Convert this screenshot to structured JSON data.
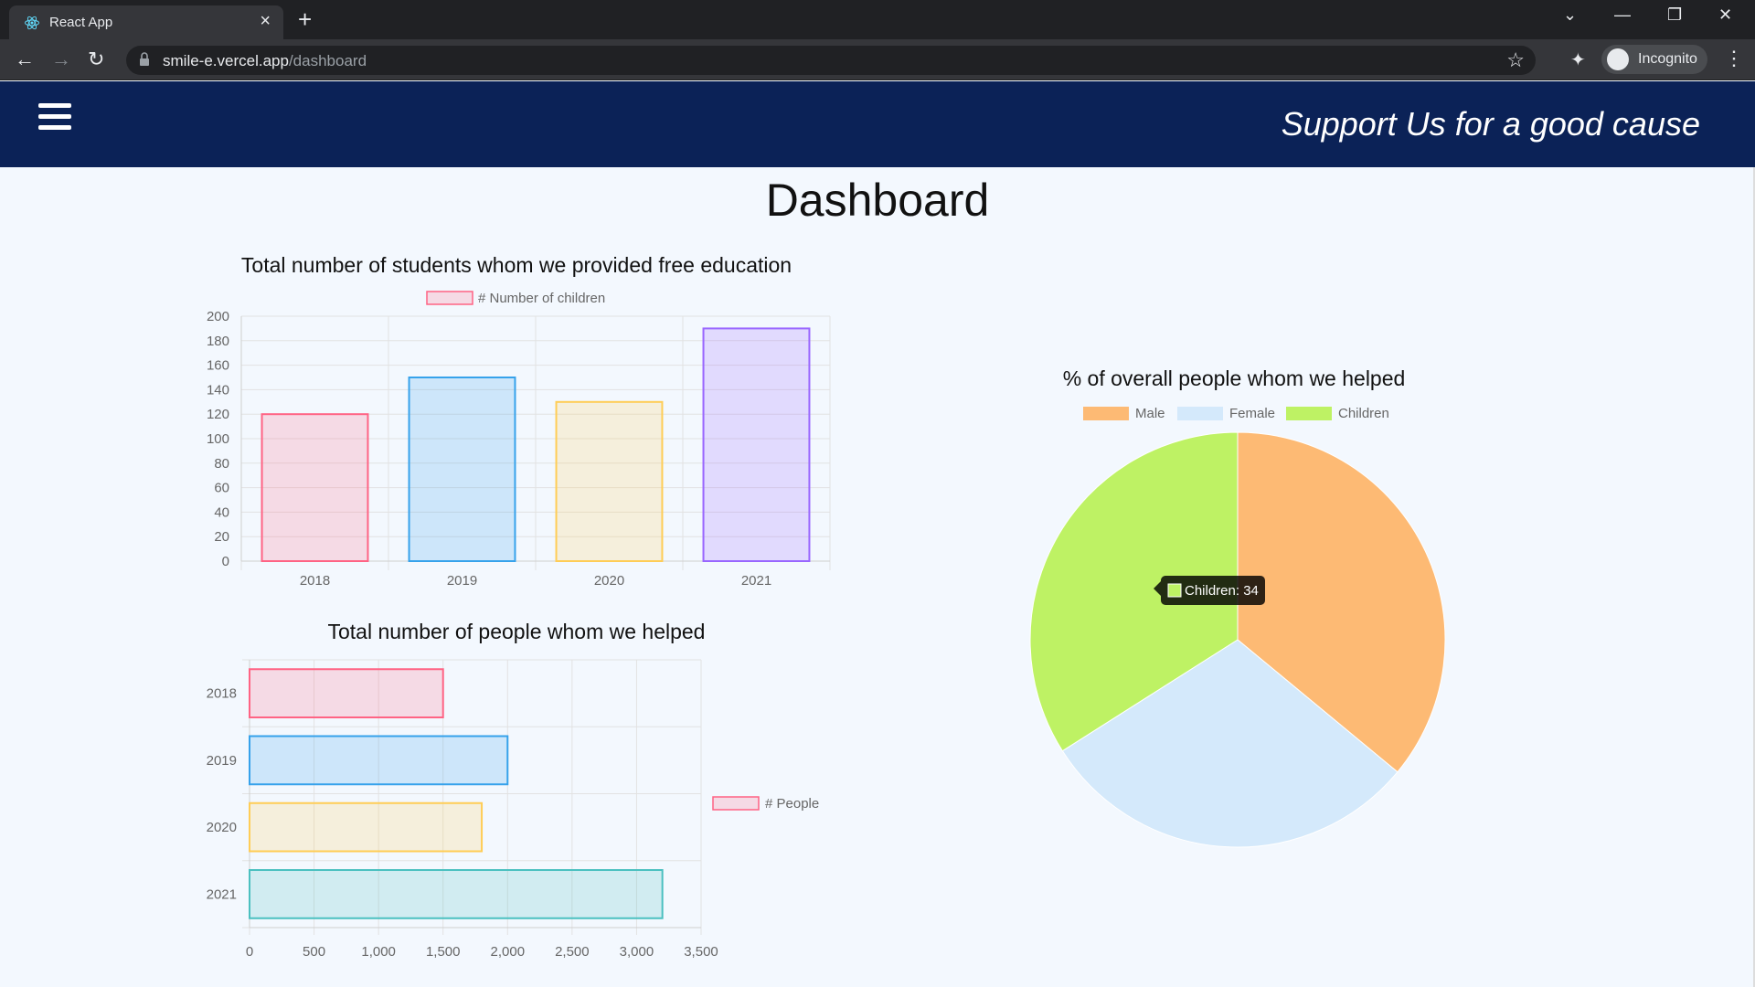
{
  "browser": {
    "tab_title": "React App",
    "url_host": "smile-e.vercel.app",
    "url_path": "/dashboard",
    "incognito_label": "Incognito"
  },
  "header": {
    "slogan": "Support Us for a good cause"
  },
  "page": {
    "title": "Dashboard"
  },
  "colors": {
    "header_bg": "#0b2257",
    "page_bg": "#f3f8fe",
    "pink": "#ff6384",
    "blue": "#36a2eb",
    "yellow": "#ffcd56",
    "purple": "#9966ff",
    "teal": "#4bc0c0",
    "male": "#fdba74",
    "female": "#d4e9fb",
    "children": "#bef264"
  },
  "chart_data": [
    {
      "type": "bar",
      "title": "Total number of students whom we provided free education",
      "legend": [
        "# Number of children"
      ],
      "legend_position": "top",
      "categories": [
        "2018",
        "2019",
        "2020",
        "2021"
      ],
      "series": [
        {
          "name": "# Number of children",
          "values": [
            120,
            150,
            130,
            190
          ]
        }
      ],
      "ylim": [
        0,
        200
      ],
      "yticks": [
        0,
        20,
        40,
        60,
        80,
        100,
        120,
        140,
        160,
        180,
        200
      ],
      "grid": true
    },
    {
      "type": "bar",
      "orientation": "horizontal",
      "title": "Total number of people whom we helped",
      "legend": [
        "# People"
      ],
      "legend_position": "right",
      "categories": [
        "2018",
        "2019",
        "2020",
        "2021"
      ],
      "series": [
        {
          "name": "# People",
          "values": [
            1500,
            2000,
            1800,
            3200
          ]
        }
      ],
      "xlim": [
        0,
        3500
      ],
      "xticks": [
        "0",
        "500",
        "1,000",
        "1,500",
        "2,000",
        "2,500",
        "3,000",
        "3,500"
      ],
      "grid": true
    },
    {
      "type": "pie",
      "title": "% of overall people whom we helped",
      "legend_position": "top",
      "labels": [
        "Male",
        "Female",
        "Children"
      ],
      "values": [
        36,
        30,
        34
      ],
      "tooltip": "Children: 34"
    }
  ]
}
